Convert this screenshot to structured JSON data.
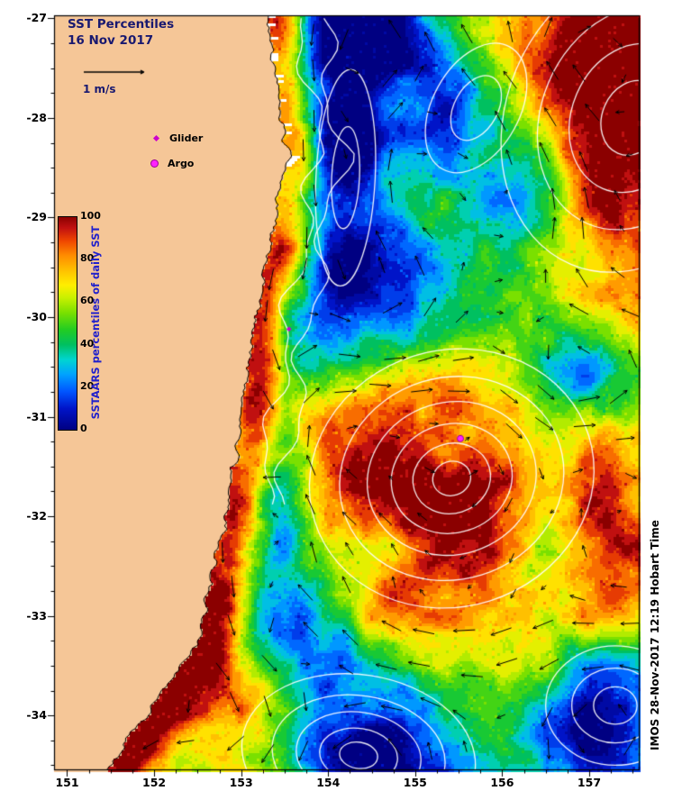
{
  "title": {
    "line1": "SST Percentiles",
    "line2": "16 Nov 2017"
  },
  "velocity_legend": {
    "label": "1 m/s"
  },
  "point_legend": [
    {
      "label": "Glider",
      "shape": "diamond",
      "color": "#cc00cc"
    },
    {
      "label": "Argo",
      "shape": "circle",
      "color": "#ff22ff"
    }
  ],
  "colorbar": {
    "title": "SSTAARS percentiles of daily SST",
    "tick_labels": [
      "100",
      "80",
      "60",
      "40",
      "20",
      "0"
    ],
    "tick_values": [
      100,
      80,
      60,
      40,
      20,
      0
    ],
    "min": 0,
    "max": 100,
    "stops": [
      {
        "v": 0,
        "c": "#000082"
      },
      {
        "v": 10,
        "c": "#0014c8"
      },
      {
        "v": 18,
        "c": "#0055ff"
      },
      {
        "v": 26,
        "c": "#00a2ff"
      },
      {
        "v": 33,
        "c": "#00d5d0"
      },
      {
        "v": 40,
        "c": "#00c060"
      },
      {
        "v": 47,
        "c": "#22cc22"
      },
      {
        "v": 55,
        "c": "#7ae000"
      },
      {
        "v": 62,
        "c": "#c8f000"
      },
      {
        "v": 68,
        "c": "#ffee00"
      },
      {
        "v": 75,
        "c": "#ffc000"
      },
      {
        "v": 82,
        "c": "#ff8c00"
      },
      {
        "v": 89,
        "c": "#ee4400"
      },
      {
        "v": 95,
        "c": "#c01010"
      },
      {
        "v": 100,
        "c": "#8b0000"
      }
    ]
  },
  "axes": {
    "x_ticks": [
      "151",
      "152",
      "153",
      "154",
      "155",
      "156",
      "157"
    ],
    "x_tick_values": [
      151,
      152,
      153,
      154,
      155,
      156,
      157
    ],
    "y_ticks": [
      "-27",
      "-28",
      "-29",
      "-30",
      "-31",
      "-32",
      "-33",
      "-34"
    ],
    "y_tick_values": [
      -27,
      -28,
      -29,
      -30,
      -31,
      -32,
      -33,
      -34
    ],
    "lon_range": [
      150.85,
      157.58
    ],
    "lat_range": [
      -34.55,
      -26.97
    ]
  },
  "watermark": "IMOS 28-Nov-2017 12:19 Hobart Time",
  "chart_data": {
    "type": "heatmap",
    "field": "SST percentile of daily SST (0-100, SSTAARS climatology)",
    "date": "16 Nov 2017",
    "region": {
      "lon": [
        150.85,
        157.58
      ],
      "lat": [
        -34.55,
        -26.97
      ]
    },
    "land_color": "#f5c697",
    "ocean_overlays": [
      "white sea-level contours",
      "black current velocity arrows"
    ],
    "coastline_lat_lon": [
      [
        -26.97,
        153.32
      ],
      [
        -27.5,
        153.38
      ],
      [
        -28.0,
        153.44
      ],
      [
        -28.35,
        153.55
      ],
      [
        -28.8,
        153.42
      ],
      [
        -29.4,
        153.3
      ],
      [
        -30.0,
        153.17
      ],
      [
        -30.6,
        153.06
      ],
      [
        -31.0,
        153.0
      ],
      [
        -31.6,
        152.9
      ],
      [
        -32.2,
        152.78
      ],
      [
        -32.8,
        152.62
      ],
      [
        -33.2,
        152.52
      ],
      [
        -33.6,
        152.25
      ],
      [
        -34.0,
        151.92
      ],
      [
        -34.3,
        151.65
      ],
      [
        -34.55,
        151.45
      ]
    ],
    "field_model": {
      "base_percentile": 50,
      "noise_amplitude": 26,
      "coastal_warm_band": {
        "offset_deg": 0.12,
        "sigma_deg": 0.22,
        "amplitude": 46
      },
      "feature_format": "[lon, lat, sigma_lon, sigma_lat, amplitude]",
      "features": [
        [
          157.35,
          -27.75,
          0.75,
          0.95,
          52
        ],
        [
          156.6,
          -27.15,
          0.8,
          0.5,
          30
        ],
        [
          157.45,
          -29.6,
          0.55,
          0.85,
          32
        ],
        [
          157.45,
          -32.2,
          0.5,
          0.85,
          38
        ],
        [
          155.45,
          -31.6,
          0.85,
          0.72,
          58
        ],
        [
          155.35,
          -31.45,
          0.3,
          0.25,
          -16
        ],
        [
          154.05,
          -31.05,
          0.5,
          0.6,
          32
        ],
        [
          155.4,
          -32.95,
          1.05,
          0.4,
          26
        ],
        [
          152.85,
          -33.95,
          0.95,
          0.55,
          46
        ],
        [
          154.2,
          -28.4,
          0.38,
          1.15,
          -52
        ],
        [
          154.35,
          -27.15,
          0.5,
          0.45,
          -40
        ],
        [
          154.75,
          -29.75,
          0.5,
          0.5,
          -36
        ],
        [
          155.6,
          -27.9,
          0.55,
          0.5,
          -30
        ],
        [
          156.25,
          -28.8,
          0.5,
          0.55,
          -26
        ],
        [
          157.0,
          -30.45,
          0.5,
          0.45,
          -38
        ],
        [
          154.35,
          -34.4,
          0.9,
          0.62,
          -55
        ],
        [
          154.3,
          -34.45,
          0.38,
          0.26,
          -18
        ],
        [
          153.55,
          -33.3,
          0.5,
          0.42,
          -38
        ],
        [
          157.25,
          -33.85,
          0.62,
          0.52,
          -45
        ],
        [
          153.62,
          -30.25,
          0.24,
          0.5,
          -28
        ],
        [
          153.35,
          -31.95,
          0.3,
          0.5,
          -24
        ],
        [
          155.0,
          -27.3,
          0.45,
          0.4,
          -20
        ],
        [
          156.9,
          -34.5,
          0.5,
          0.35,
          -25
        ]
      ]
    },
    "contour_eddies": [
      {
        "center": [
          155.42,
          -31.62
        ],
        "radii": [
          0.22,
          0.45,
          0.7,
          0.98,
          1.3,
          1.65
        ],
        "aspect": 0.78,
        "rot": -0.3
      },
      {
        "center": [
          154.35,
          -34.4
        ],
        "radii": [
          0.22,
          0.45,
          0.72,
          1.0,
          1.35
        ],
        "aspect": 0.6,
        "rot": 0.15
      },
      {
        "center": [
          157.3,
          -33.9
        ],
        "radii": [
          0.25,
          0.5,
          0.8
        ],
        "aspect": 0.75,
        "rot": 0.0
      },
      {
        "center": [
          157.5,
          -28.0
        ],
        "radii": [
          0.35,
          0.7,
          1.05,
          1.45
        ],
        "aspect": 1.1,
        "rot": 0.4
      },
      {
        "center": [
          154.2,
          -28.6
        ],
        "radii": [
          0.16,
          0.34
        ],
        "aspect": 3.2,
        "rot": 0.05
      },
      {
        "center": [
          155.7,
          -27.9
        ],
        "radii": [
          0.25,
          0.5
        ],
        "aspect": 1.4,
        "rot": 0.5
      }
    ],
    "markers": [
      {
        "name": "Argo",
        "lon": 155.52,
        "lat": -31.22,
        "color": "#ff22ff"
      },
      {
        "name": "Glider",
        "lon": 153.55,
        "lat": -30.12,
        "color": "#cc00cc"
      }
    ]
  }
}
